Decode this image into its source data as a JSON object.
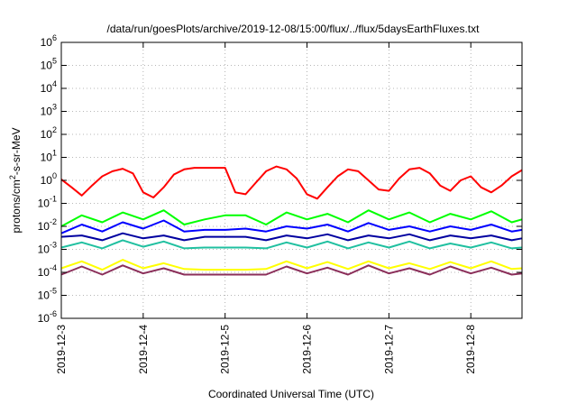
{
  "chart_data": {
    "type": "line",
    "title": "/data/run/goesPlots/archive/2019-12-08/15:00/flux/../flux/5daysEarthFluxes.txt",
    "xlabel": "Coordinated Universal Time (UTC)",
    "ylabel": "protons/cm²-s-sr-MeV",
    "ylabel_parts": {
      "pre": "protons/cm",
      "sup": "2",
      "post": "-s-sr-MeV"
    },
    "y_scale": "log",
    "ylim": [
      1e-06,
      1000000.0
    ],
    "y_ticks": [
      {
        "exp": "-6"
      },
      {
        "exp": "-5"
      },
      {
        "exp": "-4"
      },
      {
        "exp": "-3"
      },
      {
        "exp": "-2"
      },
      {
        "exp": "-1"
      },
      {
        "exp": "0"
      },
      {
        "exp": "1"
      },
      {
        "exp": "2"
      },
      {
        "exp": "3"
      },
      {
        "exp": "4"
      },
      {
        "exp": "5"
      },
      {
        "exp": "6"
      }
    ],
    "y_tick_base": "10",
    "x_ticks": [
      "2019-12-3",
      "2019-12-4",
      "2019-12-5",
      "2019-12-6",
      "2019-12-7",
      "2019-12-8"
    ],
    "xlim": [
      "2019-12-03T00:00",
      "2019-12-08T15:00"
    ],
    "grid": true,
    "series": [
      {
        "color": "#ff0000",
        "x": [
          "2019-12-03T00:00",
          "2019-12-03T03:00",
          "2019-12-03T06:00",
          "2019-12-03T09:00",
          "2019-12-03T12:00",
          "2019-12-03T15:00",
          "2019-12-03T18:00",
          "2019-12-03T21:00",
          "2019-12-04T00:00",
          "2019-12-04T03:00",
          "2019-12-04T06:00",
          "2019-12-04T09:00",
          "2019-12-04T12:00",
          "2019-12-04T15:00",
          "2019-12-04T18:00",
          "2019-12-04T21:00",
          "2019-12-05T00:00",
          "2019-12-05T03:00",
          "2019-12-05T06:00",
          "2019-12-05T09:00",
          "2019-12-05T12:00",
          "2019-12-05T15:00",
          "2019-12-05T18:00",
          "2019-12-05T21:00",
          "2019-12-06T00:00",
          "2019-12-06T03:00",
          "2019-12-06T06:00",
          "2019-12-06T09:00",
          "2019-12-06T12:00",
          "2019-12-06T15:00",
          "2019-12-06T18:00",
          "2019-12-06T21:00",
          "2019-12-07T00:00",
          "2019-12-07T03:00",
          "2019-12-07T06:00",
          "2019-12-07T09:00",
          "2019-12-07T12:00",
          "2019-12-07T15:00",
          "2019-12-07T18:00",
          "2019-12-07T21:00",
          "2019-12-08T00:00",
          "2019-12-08T03:00",
          "2019-12-08T06:00",
          "2019-12-08T09:00",
          "2019-12-08T12:00",
          "2019-12-08T15:00"
        ],
        "y": [
          1.1,
          0.5,
          0.22,
          0.6,
          1.5,
          2.5,
          3.2,
          2.0,
          0.3,
          0.18,
          0.5,
          1.8,
          3.0,
          3.5,
          3.5,
          3.5,
          3.5,
          0.3,
          0.25,
          0.8,
          2.5,
          4.0,
          3.0,
          1.2,
          0.25,
          0.16,
          0.5,
          1.5,
          3.0,
          2.5,
          1.0,
          0.4,
          0.35,
          1.2,
          3.0,
          3.5,
          2.0,
          0.6,
          0.35,
          1.0,
          1.5,
          0.5,
          0.3,
          0.6,
          1.5,
          2.8
        ]
      },
      {
        "color": "#00ff00",
        "x": [
          "2019-12-03T00:00",
          "2019-12-03T06:00",
          "2019-12-03T12:00",
          "2019-12-03T18:00",
          "2019-12-04T00:00",
          "2019-12-04T06:00",
          "2019-12-04T12:00",
          "2019-12-04T18:00",
          "2019-12-05T00:00",
          "2019-12-05T06:00",
          "2019-12-05T12:00",
          "2019-12-05T18:00",
          "2019-12-06T00:00",
          "2019-12-06T06:00",
          "2019-12-06T12:00",
          "2019-12-06T18:00",
          "2019-12-07T00:00",
          "2019-12-07T06:00",
          "2019-12-07T12:00",
          "2019-12-07T18:00",
          "2019-12-08T00:00",
          "2019-12-08T06:00",
          "2019-12-08T12:00",
          "2019-12-08T15:00"
        ],
        "y": [
          0.01,
          0.03,
          0.015,
          0.04,
          0.02,
          0.05,
          0.012,
          0.02,
          0.03,
          0.03,
          0.012,
          0.04,
          0.02,
          0.035,
          0.015,
          0.05,
          0.02,
          0.04,
          0.015,
          0.035,
          0.02,
          0.045,
          0.015,
          0.02
        ]
      },
      {
        "color": "#0000ff",
        "x": [
          "2019-12-03T00:00",
          "2019-12-03T06:00",
          "2019-12-03T12:00",
          "2019-12-03T18:00",
          "2019-12-04T00:00",
          "2019-12-04T06:00",
          "2019-12-04T12:00",
          "2019-12-04T18:00",
          "2019-12-05T00:00",
          "2019-12-05T06:00",
          "2019-12-05T12:00",
          "2019-12-05T18:00",
          "2019-12-06T00:00",
          "2019-12-06T06:00",
          "2019-12-06T12:00",
          "2019-12-06T18:00",
          "2019-12-07T00:00",
          "2019-12-07T06:00",
          "2019-12-07T12:00",
          "2019-12-07T18:00",
          "2019-12-08T00:00",
          "2019-12-08T06:00",
          "2019-12-08T12:00",
          "2019-12-08T15:00"
        ],
        "y": [
          0.005,
          0.012,
          0.006,
          0.015,
          0.008,
          0.018,
          0.006,
          0.007,
          0.007,
          0.008,
          0.006,
          0.01,
          0.008,
          0.012,
          0.006,
          0.014,
          0.007,
          0.01,
          0.006,
          0.01,
          0.007,
          0.012,
          0.006,
          0.007
        ]
      },
      {
        "color": "#0000a0",
        "x": [
          "2019-12-03T00:00",
          "2019-12-03T06:00",
          "2019-12-03T12:00",
          "2019-12-03T18:00",
          "2019-12-04T00:00",
          "2019-12-04T06:00",
          "2019-12-04T12:00",
          "2019-12-04T18:00",
          "2019-12-05T00:00",
          "2019-12-05T06:00",
          "2019-12-05T12:00",
          "2019-12-05T18:00",
          "2019-12-06T00:00",
          "2019-12-06T06:00",
          "2019-12-06T12:00",
          "2019-12-06T18:00",
          "2019-12-07T00:00",
          "2019-12-07T06:00",
          "2019-12-07T12:00",
          "2019-12-07T18:00",
          "2019-12-08T00:00",
          "2019-12-08T06:00",
          "2019-12-08T12:00",
          "2019-12-08T15:00"
        ],
        "y": [
          0.0035,
          0.004,
          0.0025,
          0.005,
          0.003,
          0.004,
          0.0025,
          0.0035,
          0.0035,
          0.0035,
          0.0025,
          0.004,
          0.003,
          0.0045,
          0.0025,
          0.004,
          0.003,
          0.0045,
          0.0025,
          0.004,
          0.003,
          0.004,
          0.0025,
          0.003
        ]
      },
      {
        "color": "#20c0a0",
        "x": [
          "2019-12-03T00:00",
          "2019-12-03T06:00",
          "2019-12-03T12:00",
          "2019-12-03T18:00",
          "2019-12-04T00:00",
          "2019-12-04T06:00",
          "2019-12-04T12:00",
          "2019-12-04T18:00",
          "2019-12-05T00:00",
          "2019-12-05T06:00",
          "2019-12-05T12:00",
          "2019-12-05T18:00",
          "2019-12-06T00:00",
          "2019-12-06T06:00",
          "2019-12-06T12:00",
          "2019-12-06T18:00",
          "2019-12-07T00:00",
          "2019-12-07T06:00",
          "2019-12-07T12:00",
          "2019-12-07T18:00",
          "2019-12-08T00:00",
          "2019-12-08T06:00",
          "2019-12-08T12:00",
          "2019-12-08T15:00"
        ],
        "y": [
          0.0012,
          0.002,
          0.0011,
          0.0025,
          0.0013,
          0.0022,
          0.0011,
          0.0012,
          0.0012,
          0.0012,
          0.0011,
          0.002,
          0.0012,
          0.0022,
          0.0011,
          0.002,
          0.0012,
          0.0022,
          0.0011,
          0.0018,
          0.0012,
          0.002,
          0.0011,
          0.0012
        ]
      },
      {
        "color": "#ffff00",
        "x": [
          "2019-12-03T00:00",
          "2019-12-03T06:00",
          "2019-12-03T12:00",
          "2019-12-03T18:00",
          "2019-12-04T00:00",
          "2019-12-04T06:00",
          "2019-12-04T12:00",
          "2019-12-04T18:00",
          "2019-12-05T00:00",
          "2019-12-05T06:00",
          "2019-12-05T12:00",
          "2019-12-05T18:00",
          "2019-12-06T00:00",
          "2019-12-06T06:00",
          "2019-12-06T12:00",
          "2019-12-06T18:00",
          "2019-12-07T00:00",
          "2019-12-07T06:00",
          "2019-12-07T12:00",
          "2019-12-07T18:00",
          "2019-12-08T00:00",
          "2019-12-08T06:00",
          "2019-12-08T12:00",
          "2019-12-08T15:00"
        ],
        "y": [
          0.00015,
          0.0003,
          0.00013,
          0.00035,
          0.00015,
          0.00025,
          0.00014,
          0.00013,
          0.00013,
          0.00013,
          0.00014,
          0.0003,
          0.00015,
          0.00028,
          0.00014,
          0.0003,
          0.00015,
          0.00025,
          0.00014,
          0.00028,
          0.00015,
          0.0003,
          0.00014,
          0.00015
        ]
      },
      {
        "color": "#8b2f5a",
        "x": [
          "2019-12-03T00:00",
          "2019-12-03T06:00",
          "2019-12-03T12:00",
          "2019-12-03T18:00",
          "2019-12-04T00:00",
          "2019-12-04T06:00",
          "2019-12-04T12:00",
          "2019-12-04T18:00",
          "2019-12-05T00:00",
          "2019-12-05T06:00",
          "2019-12-05T12:00",
          "2019-12-05T18:00",
          "2019-12-06T00:00",
          "2019-12-06T06:00",
          "2019-12-06T12:00",
          "2019-12-06T18:00",
          "2019-12-07T00:00",
          "2019-12-07T06:00",
          "2019-12-07T12:00",
          "2019-12-07T18:00",
          "2019-12-08T00:00",
          "2019-12-08T06:00",
          "2019-12-08T12:00",
          "2019-12-08T15:00"
        ],
        "y": [
          8e-05,
          0.00018,
          8e-05,
          0.0002,
          9e-05,
          0.00015,
          8e-05,
          8e-05,
          8e-05,
          8e-05,
          8e-05,
          0.00018,
          9e-05,
          0.00016,
          8e-05,
          0.0002,
          9e-05,
          0.00015,
          8e-05,
          0.00018,
          9e-05,
          0.00016,
          8e-05,
          9e-05
        ]
      }
    ]
  }
}
